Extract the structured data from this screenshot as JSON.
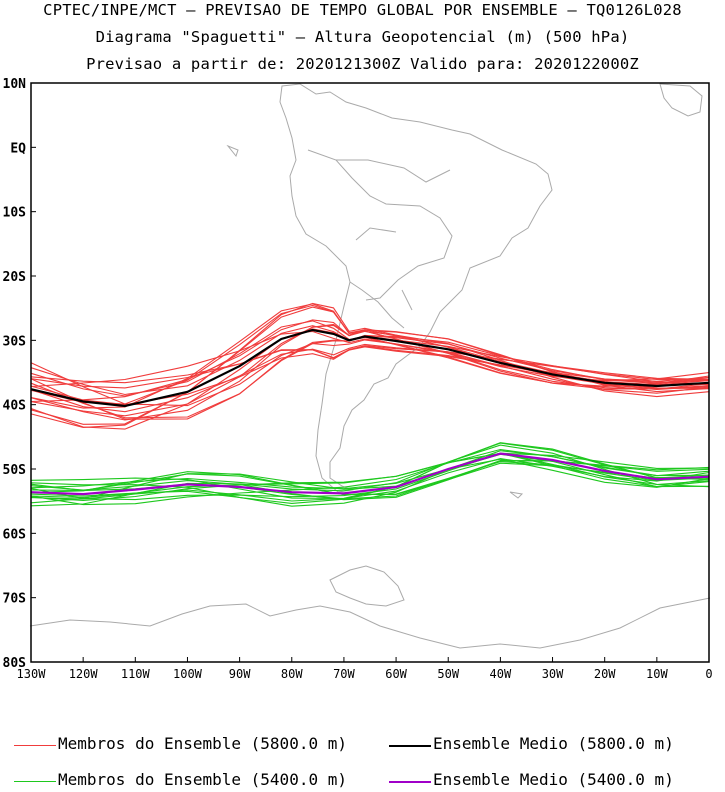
{
  "titles": {
    "line1": "CPTEC/INPE/MCT — PREVISAO DE TEMPO GLOBAL POR ENSEMBLE — TQ0126L028",
    "line2": "Diagrama \"Spaguetti\" — Altura Geopotencial (m) (500 hPa)",
    "line3": "Previsao a partir de: 2020121300Z  Valido para: 2020122000Z"
  },
  "axes": {
    "lat_labels": [
      "10N",
      "EQ",
      "10S",
      "20S",
      "30S",
      "40S",
      "50S",
      "60S",
      "70S",
      "80S"
    ],
    "lon_labels": [
      "130W",
      "120W",
      "110W",
      "100W",
      "90W",
      "80W",
      "70W",
      "60W",
      "50W",
      "40W",
      "30W",
      "20W",
      "10W",
      "0"
    ]
  },
  "legend": [
    {
      "label": "Membros do Ensemble (5800.0 m)",
      "color": "#f03c3c"
    },
    {
      "label": "Ensemble Medio (5800.0 m)",
      "color": "#000000"
    },
    {
      "label": "Membros do Ensemble (5400.0 m)",
      "color": "#1ec81e"
    },
    {
      "label": "Ensemble Medio (5400.0 m)",
      "color": "#a000c8"
    }
  ],
  "colors": {
    "land": "#aaaaaa",
    "frame": "#000000"
  }
}
